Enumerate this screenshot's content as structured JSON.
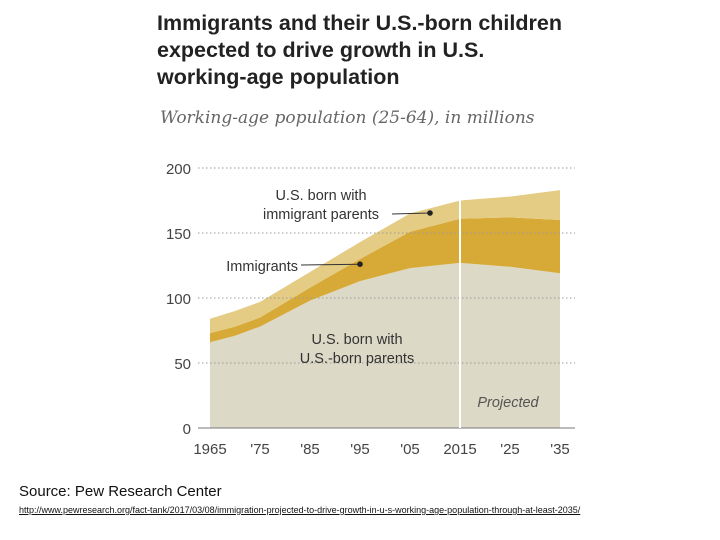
{
  "chart_data": {
    "type": "area",
    "title": "Immigrants and their U.S.-born children expected to drive growth in U.S. working-age population",
    "subtitle": "Working-age population (25-64), in millions",
    "x": [
      1965,
      1970,
      1975,
      1985,
      1995,
      2005,
      2015,
      2025,
      2035
    ],
    "xticks": [
      1965,
      1975,
      1985,
      1995,
      2005,
      2015,
      2025,
      2035
    ],
    "xtick_labels": [
      "1965",
      "'75",
      "'85",
      "'95",
      "'05",
      "2015",
      "'25",
      "'35"
    ],
    "xlim": [
      1965,
      2035
    ],
    "ylim": [
      0,
      200
    ],
    "yticks": [
      0,
      50,
      100,
      150,
      200
    ],
    "grid": true,
    "projected_from": 2015,
    "projected_label": "Projected",
    "series": [
      {
        "name": "U.S. born with U.S.-born parents",
        "label_lines": [
          "U.S. born with",
          "U.S.-born parents"
        ],
        "color": "#dcd9c7",
        "values": [
          66,
          71,
          78,
          98,
          113,
          123,
          127,
          124,
          119
        ]
      },
      {
        "name": "Immigrants",
        "label_lines": [
          "Immigrants"
        ],
        "color": "#d7aa38",
        "values": [
          7,
          7,
          7,
          10,
          17,
          28,
          34,
          38,
          41
        ]
      },
      {
        "name": "U.S. born with immigrant parents",
        "label_lines": [
          "U.S. born with",
          "immigrant parents"
        ],
        "color": "#e4cc85",
        "values": [
          11,
          12,
          12,
          12,
          13,
          14,
          14,
          16,
          23
        ]
      }
    ]
  },
  "source": "Source: Pew Research Center",
  "url": "http://www.pewresearch.org/fact-tank/2017/03/08/immigration-projected-to-drive-growth-in-u-s-working-age-population-through-at-least-2035/"
}
